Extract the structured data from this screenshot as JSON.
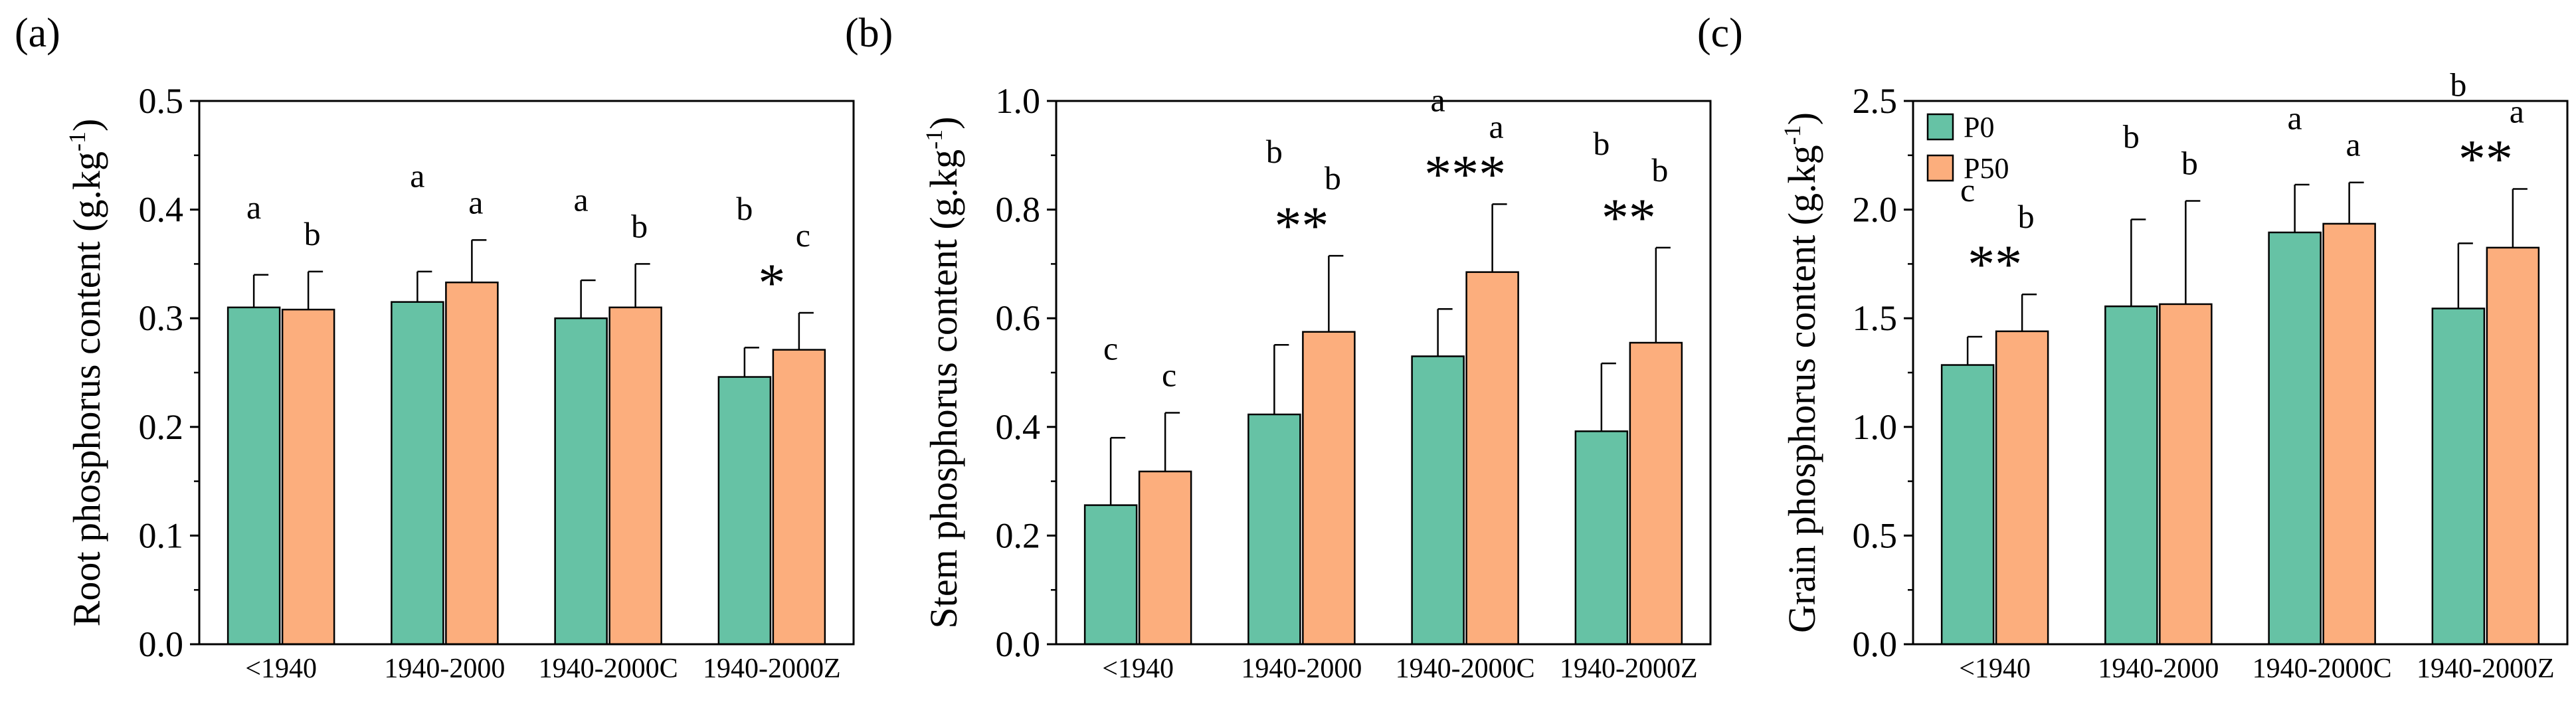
{
  "figure": {
    "series_names": [
      "P0",
      "P50"
    ],
    "colors": {
      "P0": "#66c2a5",
      "P50": "#fcae7d",
      "axis": "#000000"
    },
    "legend_position": "top-left of panel (c)"
  },
  "chart_data": [
    {
      "panel": "(a)",
      "type": "bar",
      "title": "",
      "ylabel_main": "Root phosphorus content (g.kg",
      "ylabel_sup": "-1",
      "ylabel_close": ")",
      "xlabel": "",
      "categories": [
        "<1940",
        "1940-2000",
        "1940-2000C",
        "1940-2000Z"
      ],
      "ylim": [
        0,
        0.5
      ],
      "yticks": [
        "0.0",
        "0.1",
        "0.2",
        "0.3",
        "0.4",
        "0.5"
      ],
      "series": [
        {
          "name": "P0",
          "values": [
            0.31,
            0.315,
            0.3,
            0.246
          ],
          "errors": [
            0.03,
            0.028,
            0.035,
            0.027
          ],
          "letters": [
            "a",
            "a",
            "a",
            "b"
          ]
        },
        {
          "name": "P50",
          "values": [
            0.308,
            0.333,
            0.31,
            0.271
          ],
          "errors": [
            0.035,
            0.039,
            0.04,
            0.034
          ],
          "letters": [
            "b",
            "a",
            "b",
            "c"
          ]
        }
      ],
      "significance": [
        "",
        "",
        "",
        "*"
      ],
      "legend": false
    },
    {
      "panel": "(b)",
      "type": "bar",
      "title": "",
      "ylabel_main": "Stem phosphorus content (g.kg",
      "ylabel_sup": "-1",
      "ylabel_close": ")",
      "xlabel": "",
      "categories": [
        "<1940",
        "1940-2000",
        "1940-2000C",
        "1940-2000Z"
      ],
      "ylim": [
        0,
        1.0
      ],
      "yticks": [
        "0.0",
        "0.2",
        "0.4",
        "0.6",
        "0.8",
        "1.0"
      ],
      "series": [
        {
          "name": "P0",
          "values": [
            0.256,
            0.423,
            0.53,
            0.392
          ],
          "errors": [
            0.124,
            0.128,
            0.087,
            0.125
          ],
          "letters": [
            "c",
            "b",
            "a",
            "b"
          ]
        },
        {
          "name": "P50",
          "values": [
            0.318,
            0.575,
            0.685,
            0.555
          ],
          "errors": [
            0.108,
            0.14,
            0.125,
            0.175
          ],
          "letters": [
            "c",
            "b",
            "a",
            "b"
          ]
        }
      ],
      "significance": [
        "",
        "**",
        "***",
        "**"
      ],
      "legend": false
    },
    {
      "panel": "(c)",
      "type": "bar",
      "title": "",
      "ylabel_main": "Grain phosphorus content (g.kg",
      "ylabel_sup": "-1",
      "ylabel_close": ")",
      "xlabel": "",
      "categories": [
        "<1940",
        "1940-2000",
        "1940-2000C",
        "1940-2000Z"
      ],
      "ylim": [
        0,
        2.5
      ],
      "yticks": [
        "0.0",
        "0.5",
        "1.0",
        "1.5",
        "2.0",
        "2.5"
      ],
      "series": [
        {
          "name": "P0",
          "values": [
            1.285,
            1.555,
            1.895,
            1.545
          ],
          "errors": [
            0.13,
            0.4,
            0.22,
            0.3
          ],
          "letters": [
            "c",
            "b",
            "a",
            "b"
          ]
        },
        {
          "name": "P50",
          "values": [
            1.44,
            1.565,
            1.935,
            1.825
          ],
          "errors": [
            0.17,
            0.475,
            0.19,
            0.27
          ],
          "letters": [
            "b",
            "b",
            "a",
            "a"
          ]
        }
      ],
      "significance": [
        "**",
        "",
        "",
        "**"
      ],
      "legend": true
    }
  ]
}
